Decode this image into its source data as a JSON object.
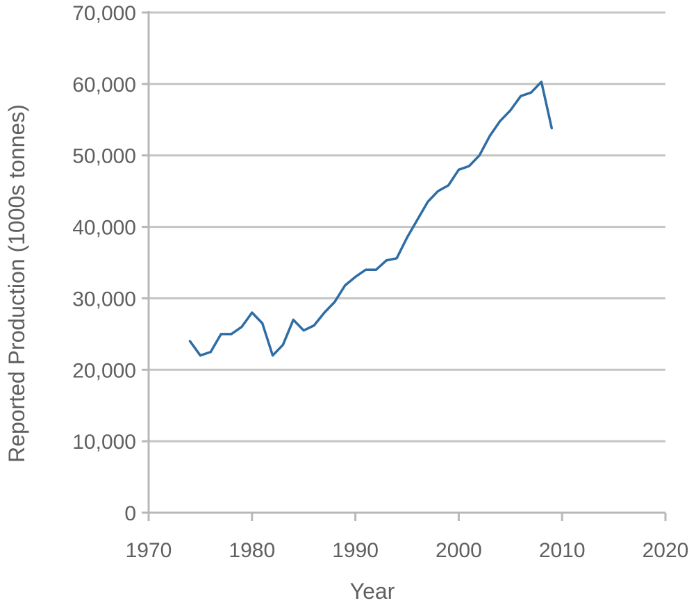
{
  "chart_data": {
    "type": "line",
    "title": "",
    "xlabel": "Year",
    "ylabel": "Reported Production (1000s tonnes)",
    "xlim": [
      1970,
      2020
    ],
    "ylim": [
      0,
      70000
    ],
    "x_ticks": [
      1970,
      1980,
      1990,
      2000,
      2010,
      2020
    ],
    "x_tick_labels": [
      "1970",
      "1980",
      "1990",
      "2000",
      "2010",
      "2020"
    ],
    "y_ticks": [
      0,
      10000,
      20000,
      30000,
      40000,
      50000,
      60000,
      70000
    ],
    "y_tick_labels": [
      "0",
      "10,000",
      "20,000",
      "30,000",
      "40,000",
      "50,000",
      "60,000",
      "70,000"
    ],
    "grid": "horizontal",
    "legend": "none",
    "series": [
      {
        "color": "#2e6da4",
        "x": [
          1974,
          1975,
          1976,
          1977,
          1978,
          1979,
          1980,
          1981,
          1982,
          1983,
          1984,
          1985,
          1986,
          1987,
          1988,
          1989,
          1990,
          1991,
          1992,
          1993,
          1994,
          1995,
          1996,
          1997,
          1998,
          1999,
          2000,
          2001,
          2002,
          2003,
          2004,
          2005,
          2006,
          2007,
          2008,
          2009
        ],
        "y": [
          24000,
          22000,
          22500,
          25000,
          25000,
          26000,
          28000,
          26500,
          22000,
          23500,
          27000,
          25500,
          26200,
          28000,
          29500,
          31800,
          33000,
          34000,
          34000,
          35300,
          35600,
          38500,
          41000,
          43500,
          45000,
          45800,
          48000,
          48500,
          50000,
          52700,
          54800,
          56300,
          58300,
          58800,
          60300,
          53800
        ]
      }
    ]
  }
}
